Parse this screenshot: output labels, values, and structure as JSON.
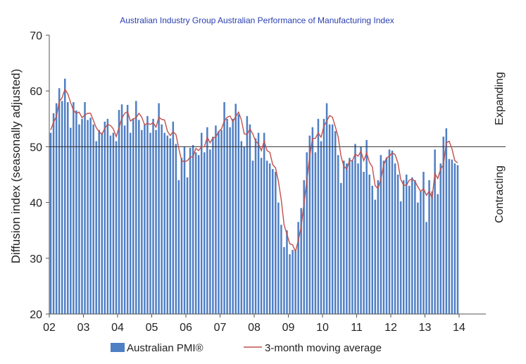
{
  "chart_data": {
    "type": "bar",
    "title": "Australian Industry Group Australian Performance of Manufacturing Index",
    "ylabel": "Diffusion index (seasonally adjusted)",
    "xlabel": "",
    "ylim": [
      20,
      70
    ],
    "yticks": [
      20,
      30,
      40,
      50,
      60,
      70
    ],
    "xticks": [
      "02",
      "03",
      "04",
      "05",
      "06",
      "07",
      "08",
      "09",
      "10",
      "11",
      "12",
      "13",
      "14"
    ],
    "reference_line": 50,
    "region_labels": {
      "above": "Expanding",
      "below": "Contracting"
    },
    "legend_position": "bottom",
    "grid": false,
    "colors": {
      "bars": "#4f7fc4",
      "moving_average": "#c0504d",
      "reference": "#333333"
    },
    "start": "2002-01",
    "series": [
      {
        "name": "Australian PMI®",
        "type": "bar",
        "values": [
          52.5,
          56.0,
          57.8,
          60.5,
          58.2,
          62.2,
          58.0,
          53.4,
          58.0,
          56.5,
          54.0,
          55.0,
          58.0,
          54.8,
          55.2,
          54.0,
          51.0,
          53.0,
          52.5,
          54.5,
          55.0,
          52.0,
          52.5,
          51.0,
          56.6,
          57.6,
          53.8,
          57.5,
          52.5,
          55.0,
          58.2,
          54.8,
          53.0,
          54.0,
          55.5,
          52.5,
          55.0,
          53.0,
          57.8,
          54.0,
          52.5,
          52.0,
          51.5,
          54.5,
          50.5,
          44.0,
          48.0,
          50.0,
          44.5,
          49.8,
          50.3,
          49.0,
          48.5,
          52.5,
          49.0,
          53.5,
          49.5,
          51.8,
          53.8,
          52.8,
          53.0,
          58.0,
          55.0,
          53.5,
          55.0,
          57.7,
          55.8,
          51.0,
          50.0,
          55.5,
          54.0,
          47.5,
          51.5,
          52.5,
          48.0,
          52.5,
          47.5,
          47.0,
          46.0,
          45.5,
          40.0,
          36.0,
          32.0,
          35.0,
          30.7,
          31.5,
          31.5,
          36.5,
          39.0,
          44.0,
          49.0,
          52.0,
          53.5,
          49.0,
          55.0,
          51.0,
          55.0,
          57.8,
          54.0,
          54.0,
          52.8,
          48.5,
          43.5,
          47.5,
          47.0,
          48.0,
          47.5,
          50.5,
          47.0,
          50.0,
          45.5,
          51.2,
          45.0,
          43.0,
          40.5,
          44.0,
          48.5,
          47.5,
          48.0,
          49.5,
          49.3,
          47.0,
          45.0,
          40.2,
          44.0,
          45.0,
          43.0,
          44.5,
          44.0,
          40.0,
          42.0,
          45.5,
          36.5,
          44.0,
          42.0,
          49.5,
          41.5,
          47.0,
          51.8,
          53.3,
          47.8,
          47.7,
          47.0,
          46.7
        ]
      },
      {
        "name": "3-month moving average",
        "type": "line",
        "values": [
          53.0,
          54.4,
          55.4,
          58.1,
          58.8,
          60.3,
          59.5,
          57.9,
          56.5,
          56.0,
          56.2,
          55.2,
          55.7,
          56.0,
          56.0,
          54.7,
          53.4,
          52.7,
          52.2,
          53.3,
          54.0,
          53.8,
          53.2,
          51.8,
          53.4,
          55.1,
          56.0,
          56.3,
          54.6,
          55.0,
          55.2,
          56.0,
          55.3,
          53.9,
          54.2,
          54.0,
          54.3,
          53.5,
          55.3,
          54.9,
          54.8,
          52.8,
          52.0,
          52.7,
          52.2,
          49.7,
          47.5,
          47.3,
          47.5,
          48.1,
          48.2,
          49.7,
          49.3,
          50.0,
          50.0,
          51.7,
          50.7,
          51.6,
          51.7,
          52.7,
          53.2,
          54.6,
          55.3,
          55.5,
          54.5,
          55.4,
          56.2,
          54.8,
          52.3,
          52.2,
          53.2,
          52.3,
          51.0,
          50.5,
          49.3,
          51.0,
          49.3,
          49.0,
          46.8,
          46.2,
          43.8,
          40.5,
          36.0,
          34.3,
          32.6,
          32.4,
          31.2,
          33.2,
          35.7,
          39.8,
          44.0,
          48.3,
          51.5,
          51.5,
          52.5,
          51.7,
          53.7,
          54.6,
          55.6,
          55.3,
          53.6,
          51.8,
          48.3,
          46.5,
          46.0,
          47.5,
          47.5,
          48.7,
          48.3,
          49.2,
          47.5,
          48.9,
          47.2,
          46.4,
          43.0,
          42.5,
          44.2,
          46.7,
          48.0,
          48.3,
          48.9,
          48.6,
          47.1,
          44.1,
          43.1,
          43.1,
          44.0,
          44.2,
          43.8,
          42.8,
          42.0,
          42.5,
          41.3,
          42.0,
          40.8,
          45.2,
          44.3,
          46.0,
          46.8,
          50.7,
          51.0,
          49.6,
          47.5,
          47.1
        ]
      }
    ]
  },
  "legend": {
    "bar_label": "Australian PMI®",
    "line_label": "3-month moving average"
  }
}
